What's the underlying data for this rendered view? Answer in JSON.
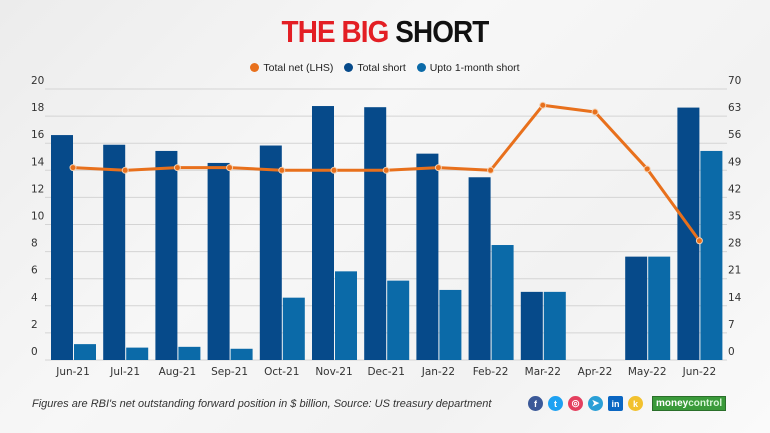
{
  "title": {
    "part1": "THE BIG",
    "part2": "SHORT"
  },
  "footer": "Figures are RBI's net outstanding forward position in $ billion, Source: US treasury department",
  "brand": {
    "part1": "money",
    "part2": "control"
  },
  "social_icons": [
    "facebook-icon",
    "twitter-icon",
    "instagram-icon",
    "telegram-icon",
    "linkedin-icon",
    "koo-icon"
  ],
  "colors": {
    "total_net": "#e8701c",
    "total_short": "#064a8a",
    "upto_1m": "#0b6aa8",
    "title_red": "#e31e24"
  },
  "chart_data": {
    "type": "bar+line",
    "title": "THE BIG SHORT",
    "categories": [
      "Jun-21",
      "Jul-21",
      "Aug-21",
      "Sep-21",
      "Oct-21",
      "Nov-21",
      "Dec-21",
      "Jan-22",
      "Feb-22",
      "Mar-22",
      "Apr-22",
      "May-22",
      "Jun-22"
    ],
    "left_axis": {
      "range": [
        0,
        20
      ],
      "ticks": [
        "0",
        "2",
        "4",
        "6",
        "8",
        "10",
        "12",
        "14",
        "16",
        "18",
        "20"
      ]
    },
    "right_axis": {
      "range": [
        0,
        70
      ],
      "ticks": [
        "0",
        "7",
        "14",
        "21",
        "28",
        "35",
        "42",
        "49",
        "56",
        "63",
        "70"
      ]
    },
    "grid": true,
    "legend_placement": "top-center",
    "series": [
      {
        "name": "Total net (LHS)",
        "type": "line",
        "axis": "left",
        "values": [
          14.2,
          14.0,
          14.2,
          14.2,
          14.0,
          14.0,
          14.0,
          14.2,
          14.0,
          18.8,
          18.3,
          14.1,
          8.8
        ]
      },
      {
        "name": "Total short",
        "type": "bar",
        "axis": "right",
        "values": [
          58.1,
          55.6,
          54.0,
          50.9,
          55.4,
          65.6,
          65.3,
          53.3,
          47.2,
          17.6,
          0,
          26.7,
          65.2
        ]
      },
      {
        "name": "Upto 1-month short",
        "type": "bar",
        "axis": "right",
        "values": [
          4.1,
          3.2,
          3.4,
          2.9,
          16.1,
          22.9,
          20.5,
          18.1,
          29.7,
          17.6,
          0,
          26.7,
          54.0
        ]
      }
    ]
  }
}
